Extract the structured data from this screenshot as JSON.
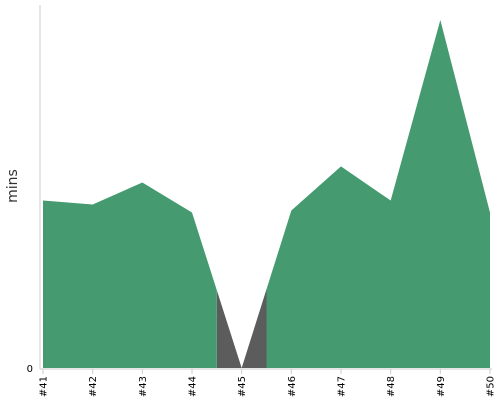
{
  "chart_data": {
    "type": "area",
    "title": "",
    "xlabel": "",
    "ylabel": "mins",
    "categories": [
      "#41",
      "#42",
      "#43",
      "#44",
      "#45",
      "#46",
      "#47",
      "#48",
      "#49",
      "#50"
    ],
    "series": [
      {
        "values": [
          167,
          163,
          185,
          155,
          0,
          157,
          201,
          167,
          347,
          155
        ]
      }
    ],
    "ylim": [
      0,
      347
    ],
    "yticks": [
      "0"
    ],
    "grid": false,
    "legend": "none",
    "colors": {
      "area": "#459b6f",
      "gap": "#5c5c5c",
      "axis": "#cccccc",
      "tick": "#000000"
    }
  }
}
